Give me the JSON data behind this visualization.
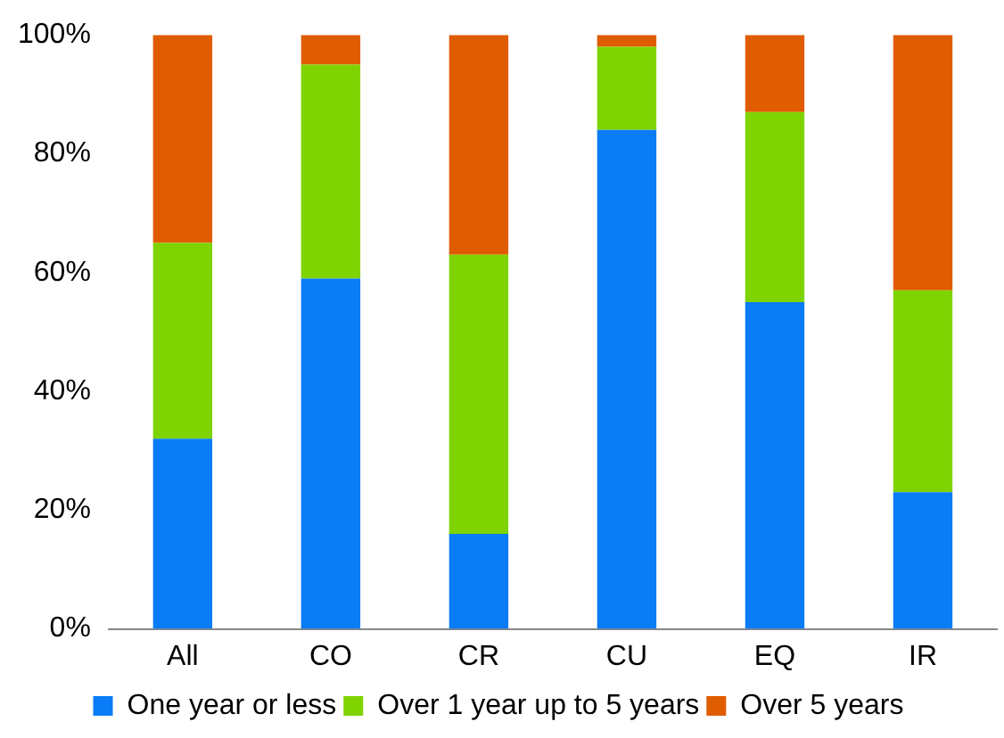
{
  "chart_data": {
    "type": "bar",
    "stacked": true,
    "categories": [
      "All",
      "CO",
      "CR",
      "CU",
      "EQ",
      "IR"
    ],
    "series": [
      {
        "name": "One year or less",
        "color": "#0a7cf5",
        "values": [
          32,
          59,
          16,
          84,
          55,
          23
        ]
      },
      {
        "name": "Over 1 year up to 5 years",
        "color": "#7fd300",
        "values": [
          33,
          36,
          47,
          14,
          32,
          34
        ]
      },
      {
        "name": "Over 5 years",
        "color": "#e05c00",
        "values": [
          35,
          5,
          37,
          2,
          13,
          43
        ]
      }
    ],
    "ylim": [
      0,
      100
    ],
    "yticks": [
      {
        "value": 0,
        "label": "0%"
      },
      {
        "value": 20,
        "label": "20%"
      },
      {
        "value": 40,
        "label": "40%"
      },
      {
        "value": 60,
        "label": "60%"
      },
      {
        "value": 80,
        "label": "80%"
      },
      {
        "value": 100,
        "label": "100%"
      }
    ],
    "grid": false,
    "legend": "bottom"
  }
}
